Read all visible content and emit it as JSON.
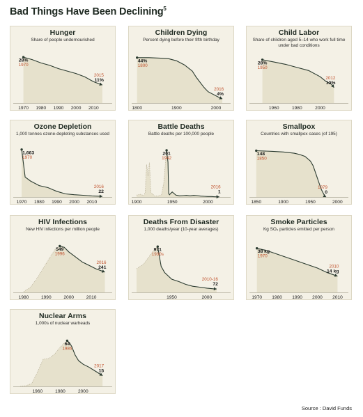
{
  "page": {
    "title": "Bad Things Have Been Declining",
    "title_note": "5",
    "source": "Source : David Funds"
  },
  "colors": {
    "panel_bg": "#f4f1e6",
    "area_fill": "#e6e1cc",
    "line": "#2a3a2f",
    "start_label": "#c0522d",
    "end_label": "#c0522d",
    "value_label": "#1a1a1a"
  },
  "chart_data": [
    {
      "id": "hunger",
      "type": "area",
      "title": "Hunger",
      "subtitle": "Share of people undernourished",
      "x": [
        1970,
        1975,
        1980,
        1985,
        1990,
        1995,
        2000,
        2005,
        2010,
        2015
      ],
      "y": [
        28,
        26.5,
        24.5,
        23,
        21,
        19.5,
        18,
        16,
        13,
        11
      ],
      "xlim": [
        1965,
        2019
      ],
      "ylim": [
        0,
        34
      ],
      "xticks": [
        1970,
        1980,
        1990,
        2000,
        2010
      ],
      "annotations": [
        {
          "x": 1970,
          "y": 28,
          "value": "28%",
          "year": "1970"
        },
        {
          "x": 2015,
          "y": 11,
          "value": "11%",
          "year": "2015"
        }
      ]
    },
    {
      "id": "children-dying",
      "type": "area",
      "title": "Children Dying",
      "subtitle": "Percent dying before their fifth birthday",
      "x": [
        1800,
        1830,
        1860,
        1880,
        1900,
        1920,
        1940,
        1950,
        1960,
        1970,
        1980,
        1990,
        2000,
        2010,
        2016
      ],
      "y": [
        44,
        44,
        43.5,
        43,
        41,
        37,
        31,
        25,
        20,
        15,
        11,
        9,
        7,
        5,
        4
      ],
      "xlim": [
        1790,
        2030
      ],
      "ylim": [
        0,
        54
      ],
      "xticks": [
        1800,
        1900,
        2000
      ],
      "annotations": [
        {
          "x": 1800,
          "y": 44,
          "value": "44%",
          "year": "1800"
        },
        {
          "x": 2016,
          "y": 4,
          "value": "4%",
          "year": "2016"
        }
      ]
    },
    {
      "id": "child-labor",
      "type": "area",
      "title": "Child Labor",
      "subtitle": "Share of children aged 5–14 who work full time under bad conditions",
      "x": [
        1950,
        1960,
        1970,
        1980,
        1990,
        2000,
        2005,
        2010,
        2012
      ],
      "y": [
        28,
        26.5,
        25,
        23,
        21,
        17,
        14,
        12,
        10
      ],
      "xlim": [
        1940,
        2022
      ],
      "ylim": [
        0,
        36
      ],
      "xticks": [
        1960,
        1980,
        2000
      ],
      "annotations": [
        {
          "x": 1950,
          "y": 28,
          "value": "28%",
          "year": "1950"
        },
        {
          "x": 2012,
          "y": 10,
          "value": "10%",
          "year": "2012"
        }
      ]
    },
    {
      "id": "ozone-depletion",
      "type": "area",
      "title": "Ozone Depletion",
      "subtitle": "1,000 tonnes ozone-depleting substances used",
      "x": [
        1970,
        1972,
        1975,
        1980,
        1985,
        1988,
        1990,
        1995,
        2000,
        2005,
        2010,
        2016
      ],
      "y": [
        1663,
        700,
        560,
        400,
        330,
        250,
        200,
        110,
        80,
        60,
        40,
        22
      ],
      "xlim": [
        1966,
        2020
      ],
      "ylim": [
        0,
        1950
      ],
      "xticks": [
        1970,
        1980,
        1990,
        2000,
        2010
      ],
      "annotations": [
        {
          "x": 1970,
          "y": 1663,
          "value": "1,663",
          "year": "1970"
        },
        {
          "x": 2016,
          "y": 22,
          "value": "22",
          "year": "2016"
        }
      ]
    },
    {
      "id": "battle-deaths",
      "type": "area",
      "title": "Battle Deaths",
      "subtitle": "Battle deaths per 100,000 people",
      "x": [
        1900,
        1905,
        1910,
        1912,
        1914,
        1916,
        1918,
        1920,
        1925,
        1930,
        1935,
        1938,
        1940,
        1942,
        1944,
        1945,
        1946,
        1950,
        1955,
        1960,
        1965,
        1970,
        1975,
        1980,
        1985,
        1990,
        1995,
        2000,
        2005,
        2010,
        2016
      ],
      "y": [
        8,
        12,
        6,
        20,
        140,
        90,
        150,
        20,
        5,
        4,
        10,
        60,
        130,
        201,
        150,
        15,
        10,
        22,
        8,
        5,
        6,
        7,
        5,
        7,
        6,
        4,
        3,
        2,
        2,
        1,
        1
      ],
      "xlim": [
        1895,
        2028
      ],
      "ylim": [
        0,
        240
      ],
      "xticks": [
        1900,
        1950,
        2000
      ],
      "annotations": [
        {
          "x": 1942,
          "y": 201,
          "value": "201",
          "year": "1942"
        },
        {
          "x": 2016,
          "y": 1,
          "value": "1",
          "year": "2016"
        }
      ]
    },
    {
      "id": "smallpox",
      "type": "area",
      "title": "Smallpox",
      "subtitle": "Countries with smallpox cases (of 195)",
      "x": [
        1850,
        1880,
        1900,
        1920,
        1930,
        1940,
        1950,
        1955,
        1960,
        1965,
        1970,
        1975,
        1977,
        1979
      ],
      "y": [
        148,
        146,
        144,
        140,
        136,
        130,
        115,
        100,
        75,
        50,
        25,
        8,
        2,
        0
      ],
      "xlim": [
        1840,
        2015
      ],
      "ylim": [
        0,
        178
      ],
      "xticks": [
        1850,
        1900,
        1950,
        2000
      ],
      "annotations": [
        {
          "x": 1850,
          "y": 148,
          "value": "148",
          "year": "1850"
        },
        {
          "x": 1979,
          "y": 0,
          "value": "0",
          "year": "1979"
        }
      ]
    },
    {
      "id": "hiv-infections",
      "type": "area",
      "title": "HIV Infections",
      "subtitle": "New HIV infections per million people",
      "x": [
        1980,
        1983,
        1986,
        1989,
        1992,
        1994,
        1996,
        1998,
        2000,
        2003,
        2006,
        2009,
        2012,
        2016
      ],
      "y": [
        10,
        60,
        170,
        300,
        430,
        510,
        549,
        535,
        480,
        420,
        360,
        320,
        280,
        241
      ],
      "xlim": [
        1976,
        2018
      ],
      "ylim": [
        0,
        660
      ],
      "xticks": [
        1980,
        1990,
        2000,
        2010
      ],
      "annotations": [
        {
          "x": 1996,
          "y": 549,
          "value": "549",
          "year": "1996"
        },
        {
          "x": 2016,
          "y": 241,
          "value": "241",
          "year": "2016"
        }
      ]
    },
    {
      "id": "deaths-from-disaster",
      "type": "area",
      "title": "Deaths From Disaster",
      "subtitle": "1,000 deaths/year (10-year averages)",
      "x": [
        1900,
        1910,
        1920,
        1925,
        1930,
        1935,
        1940,
        1950,
        1960,
        1970,
        1980,
        1990,
        2000,
        2010,
        2014
      ],
      "y": [
        500,
        600,
        800,
        900,
        971,
        550,
        420,
        280,
        230,
        170,
        130,
        110,
        90,
        75,
        72
      ],
      "xlim": [
        1895,
        2030
      ],
      "ylim": [
        0,
        1180
      ],
      "xticks": [
        1950,
        2000
      ],
      "annotations": [
        {
          "x": 1930,
          "y": 971,
          "value": "971",
          "year": "1930s"
        },
        {
          "x": 2014,
          "y": 72,
          "value": "72",
          "year": "2010-16"
        }
      ]
    },
    {
      "id": "smoke-particles",
      "type": "area",
      "title": "Smoke Particles",
      "subtitle": "Kg SO₂ particles emitted per person",
      "x": [
        1970,
        1975,
        1980,
        1985,
        1990,
        1995,
        2000,
        2005,
        2010
      ],
      "y": [
        38,
        36,
        33,
        30,
        27,
        24,
        21,
        17,
        14
      ],
      "xlim": [
        1967,
        2014
      ],
      "ylim": [
        0,
        48
      ],
      "xticks": [
        1970,
        1980,
        1990,
        2000,
        2010
      ],
      "annotations": [
        {
          "x": 1970,
          "y": 38,
          "value": "38 kg",
          "year": "1970"
        },
        {
          "x": 2010,
          "y": 14,
          "value": "14 kg",
          "year": "2010"
        }
      ]
    },
    {
      "id": "nuclear-arms",
      "type": "area",
      "title": "Nuclear Arms",
      "subtitle": "1,000s of nuclear warheads",
      "x": [
        1945,
        1950,
        1955,
        1960,
        1965,
        1970,
        1975,
        1980,
        1983,
        1986,
        1988,
        1990,
        1993,
        1996,
        2000,
        2005,
        2010,
        2017
      ],
      "y": [
        0.1,
        1,
        4,
        20,
        38,
        39,
        45,
        55,
        60,
        64,
        61,
        56,
        44,
        36,
        31,
        27,
        22,
        15
      ],
      "xlim": [
        1940,
        2023
      ],
      "ylim": [
        0,
        78
      ],
      "xticks": [
        1960,
        1980,
        2000
      ],
      "annotations": [
        {
          "x": 1986,
          "y": 64,
          "value": "64",
          "year": "1986"
        },
        {
          "x": 2017,
          "y": 15,
          "value": "15",
          "year": "2017"
        }
      ]
    }
  ]
}
